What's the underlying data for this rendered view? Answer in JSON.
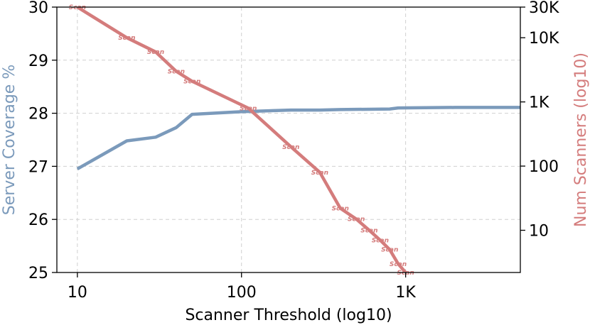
{
  "chart_data": {
    "type": "line",
    "xlabel": "Scanner Threshold (log10)",
    "ylabel_left": "Server Coverage %",
    "ylabel_right": "Num Scanners (log10)",
    "x_scale": "log",
    "xlim": [
      7.5,
      5000
    ],
    "x_ticks": [
      10,
      100,
      1000
    ],
    "x_tick_labels": [
      "10",
      "100",
      "1K"
    ],
    "ylim_left": [
      25,
      30
    ],
    "y_left_ticks": [
      25,
      26,
      27,
      28,
      29,
      30
    ],
    "y_left_tick_labels": [
      "25",
      "26",
      "27",
      "28",
      "29",
      "30"
    ],
    "y_right_scale": "log",
    "ylim_right": [
      2.2,
      30000
    ],
    "y_right_ticks": [
      10,
      100,
      1000,
      10000,
      30000
    ],
    "y_right_tick_labels": [
      "10",
      "100",
      "1K",
      "10K",
      "30K"
    ],
    "grid": true,
    "series": [
      {
        "axis": "left",
        "color": "#7b9abb",
        "x": [
          10,
          20,
          30,
          40,
          50,
          100,
          200,
          300,
          400,
          800,
          900,
          2000,
          5000
        ],
        "y": [
          26.95,
          27.48,
          27.55,
          27.73,
          27.98,
          28.03,
          28.06,
          28.06,
          28.07,
          28.08,
          28.1,
          28.11,
          28.11
        ]
      },
      {
        "axis": "right",
        "color": "#d47c7c",
        "marker_label": "Scan",
        "x": [
          10,
          20,
          30,
          40,
          50,
          110,
          200,
          300,
          400,
          500,
          600,
          700,
          800,
          900,
          1000
        ],
        "y": [
          30000,
          10000,
          6000,
          3000,
          2100,
          800,
          200,
          80,
          22,
          15,
          10,
          7,
          5,
          3,
          2.2
        ]
      }
    ]
  }
}
